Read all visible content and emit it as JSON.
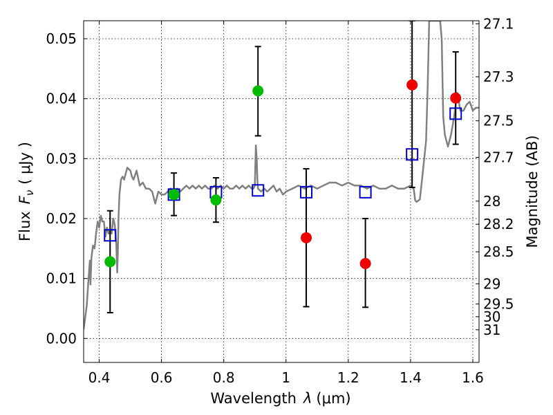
{
  "chart_data": {
    "type": "scatter",
    "xlabel": "Wavelength",
    "xlabel_lambda": "λ",
    "xlabel_units": "(μm)",
    "ylabel": "Flux",
    "ylabel_Fnu": "F",
    "ylabel_nu": "ν",
    "ylabel_units": "( μJy )",
    "y2label": "Magnitude (AB)",
    "xlim": [
      0.35,
      1.62
    ],
    "ylim": [
      -0.004,
      0.053
    ],
    "grid": true,
    "xticks": [
      0.4,
      0.6,
      0.8,
      1.0,
      1.2,
      1.4,
      1.6
    ],
    "xtick_labels": [
      "0.4",
      "0.6",
      "0.8",
      "1",
      "1.2",
      "1.4",
      "1.6"
    ],
    "yticks": [
      0.0,
      0.01,
      0.02,
      0.03,
      0.04,
      0.05
    ],
    "ytick_labels": [
      "0.00",
      "0.01",
      "0.02",
      "0.03",
      "0.04",
      "0.05"
    ],
    "mag_ticks": [
      "27.1",
      "27.3",
      "27.5",
      "27.7",
      "28",
      "28.2",
      "28.5",
      "29",
      "29.5",
      "30",
      "31"
    ],
    "colors": {
      "green": "#00bb00",
      "red": "#ee0000",
      "model": "#808080",
      "square": "#0000cc",
      "errorbar": "#000000"
    },
    "series": [
      {
        "color": "green",
        "marker": "circle",
        "points": [
          {
            "x": 0.435,
            "y": 0.0128,
            "ylo": 0.0043,
            "yhi": 0.0213
          },
          {
            "x": 0.64,
            "y": 0.024,
            "ylo": 0.0205,
            "yhi": 0.0276
          },
          {
            "x": 0.775,
            "y": 0.0231,
            "ylo": 0.0194,
            "yhi": 0.0268
          },
          {
            "x": 0.91,
            "y": 0.0413,
            "ylo": 0.0338,
            "yhi": 0.0487
          }
        ]
      },
      {
        "color": "red",
        "marker": "circle",
        "points": [
          {
            "x": 1.065,
            "y": 0.0168,
            "ylo": 0.0053,
            "yhi": 0.0283
          },
          {
            "x": 1.255,
            "y": 0.0125,
            "ylo": 0.0052,
            "yhi": 0.02
          },
          {
            "x": 1.405,
            "y": 0.0423,
            "ylo": 0.0252,
            "yhi": 0.053
          },
          {
            "x": 1.545,
            "y": 0.0401,
            "ylo": 0.0324,
            "yhi": 0.0478
          }
        ]
      },
      {
        "color": "square",
        "marker": "square",
        "points": [
          {
            "x": 0.435,
            "y": 0.0172
          },
          {
            "x": 0.64,
            "y": 0.024
          },
          {
            "x": 0.775,
            "y": 0.0244
          },
          {
            "x": 0.91,
            "y": 0.0247
          },
          {
            "x": 1.065,
            "y": 0.0244
          },
          {
            "x": 1.255,
            "y": 0.0244
          },
          {
            "x": 1.405,
            "y": 0.0307
          },
          {
            "x": 1.545,
            "y": 0.0375
          }
        ]
      }
    ],
    "model_spectrum": {
      "color": "model",
      "x": [
        0.35,
        0.36,
        0.365,
        0.37,
        0.372,
        0.375,
        0.38,
        0.385,
        0.39,
        0.395,
        0.4,
        0.405,
        0.41,
        0.415,
        0.42,
        0.425,
        0.43,
        0.435,
        0.44,
        0.445,
        0.45,
        0.455,
        0.458,
        0.46,
        0.462,
        0.465,
        0.47,
        0.475,
        0.48,
        0.49,
        0.5,
        0.505,
        0.51,
        0.52,
        0.53,
        0.54,
        0.55,
        0.56,
        0.57,
        0.58,
        0.59,
        0.6,
        0.61,
        0.62,
        0.63,
        0.64,
        0.65,
        0.66,
        0.67,
        0.68,
        0.69,
        0.7,
        0.71,
        0.72,
        0.73,
        0.74,
        0.75,
        0.76,
        0.77,
        0.78,
        0.79,
        0.8,
        0.81,
        0.82,
        0.83,
        0.84,
        0.85,
        0.86,
        0.87,
        0.88,
        0.89,
        0.895,
        0.9,
        0.903,
        0.906,
        0.908,
        0.91,
        0.92,
        0.93,
        0.94,
        0.95,
        0.96,
        0.97,
        0.98,
        0.99,
        1.0,
        1.02,
        1.04,
        1.06,
        1.08,
        1.1,
        1.12,
        1.14,
        1.16,
        1.18,
        1.2,
        1.22,
        1.24,
        1.26,
        1.28,
        1.3,
        1.32,
        1.34,
        1.36,
        1.38,
        1.4,
        1.41,
        1.415,
        1.42,
        1.43,
        1.44,
        1.45,
        1.455,
        1.46,
        1.47,
        1.48,
        1.49,
        1.495,
        1.5,
        1.505,
        1.51,
        1.52,
        1.53,
        1.54,
        1.55,
        1.56,
        1.57,
        1.58,
        1.59,
        1.6,
        1.61,
        1.62
      ],
      "y": [
        0.0015,
        0.0055,
        0.0095,
        0.013,
        0.009,
        0.0135,
        0.0155,
        0.015,
        0.0175,
        0.0195,
        0.0185,
        0.0205,
        0.0195,
        0.0195,
        0.017,
        0.0185,
        0.0175,
        0.018,
        0.0175,
        0.02,
        0.019,
        0.0155,
        0.011,
        0.0145,
        0.02,
        0.024,
        0.0265,
        0.027,
        0.0265,
        0.0285,
        0.028,
        0.027,
        0.0265,
        0.028,
        0.0255,
        0.026,
        0.025,
        0.025,
        0.0245,
        0.0225,
        0.0245,
        0.024,
        0.024,
        0.0245,
        0.025,
        0.0245,
        0.025,
        0.0245,
        0.025,
        0.0255,
        0.025,
        0.0255,
        0.025,
        0.0255,
        0.025,
        0.0255,
        0.025,
        0.025,
        0.0255,
        0.025,
        0.0255,
        0.025,
        0.0255,
        0.025,
        0.025,
        0.0255,
        0.025,
        0.0255,
        0.025,
        0.0255,
        0.025,
        0.025,
        0.0255,
        0.0322,
        0.03,
        0.0265,
        0.025,
        0.0245,
        0.025,
        0.0245,
        0.025,
        0.0255,
        0.0245,
        0.025,
        0.024,
        0.0245,
        0.025,
        0.0255,
        0.025,
        0.0255,
        0.025,
        0.0255,
        0.026,
        0.026,
        0.0255,
        0.026,
        0.0255,
        0.0255,
        0.025,
        0.0255,
        0.025,
        0.025,
        0.0255,
        0.025,
        0.025,
        0.0255,
        0.025,
        0.023,
        0.0228,
        0.0232,
        0.028,
        0.033,
        0.042,
        0.053,
        0.053,
        0.053,
        0.053,
        0.053,
        0.05,
        0.037,
        0.034,
        0.032,
        0.034,
        0.037,
        0.041,
        0.038,
        0.038,
        0.039,
        0.0395,
        0.038,
        0.0385,
        0.0385
      ]
    }
  }
}
